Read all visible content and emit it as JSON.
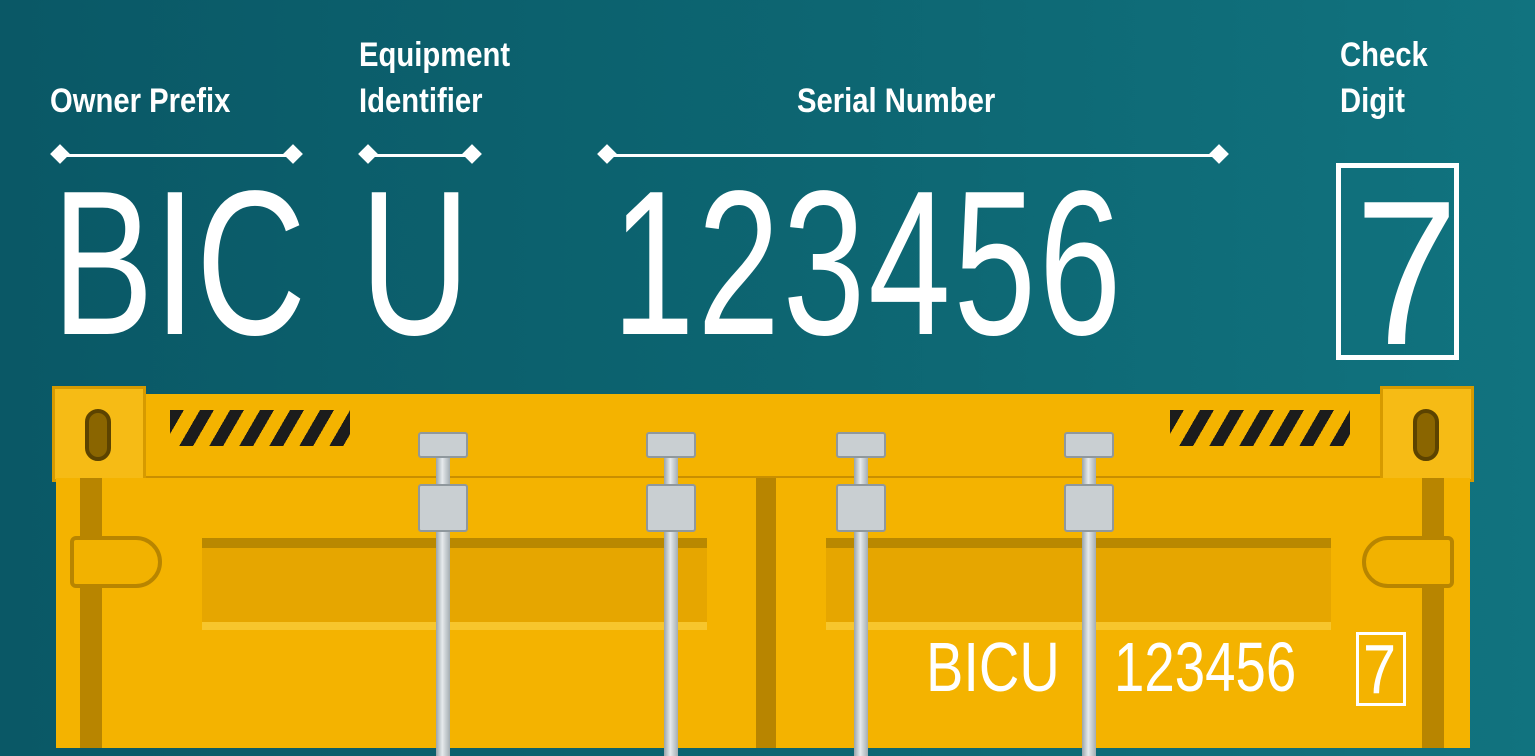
{
  "labels": {
    "owner_prefix": "Owner Prefix",
    "equipment_identifier_line1": "Equipment",
    "equipment_identifier_line2": "Identifier",
    "serial_number": "Serial Number",
    "check_digit_line1": "Check",
    "check_digit_line2": "Digit"
  },
  "code": {
    "owner_prefix": "BIC",
    "equipment_identifier": "U",
    "serial_number": "123456",
    "check_digit": "7"
  },
  "container_marking": {
    "prefix": "BICU",
    "serial": "123456",
    "check_digit": "7"
  },
  "colors": {
    "background": "#0d6672",
    "container": "#f4b300",
    "text": "#ffffff"
  }
}
